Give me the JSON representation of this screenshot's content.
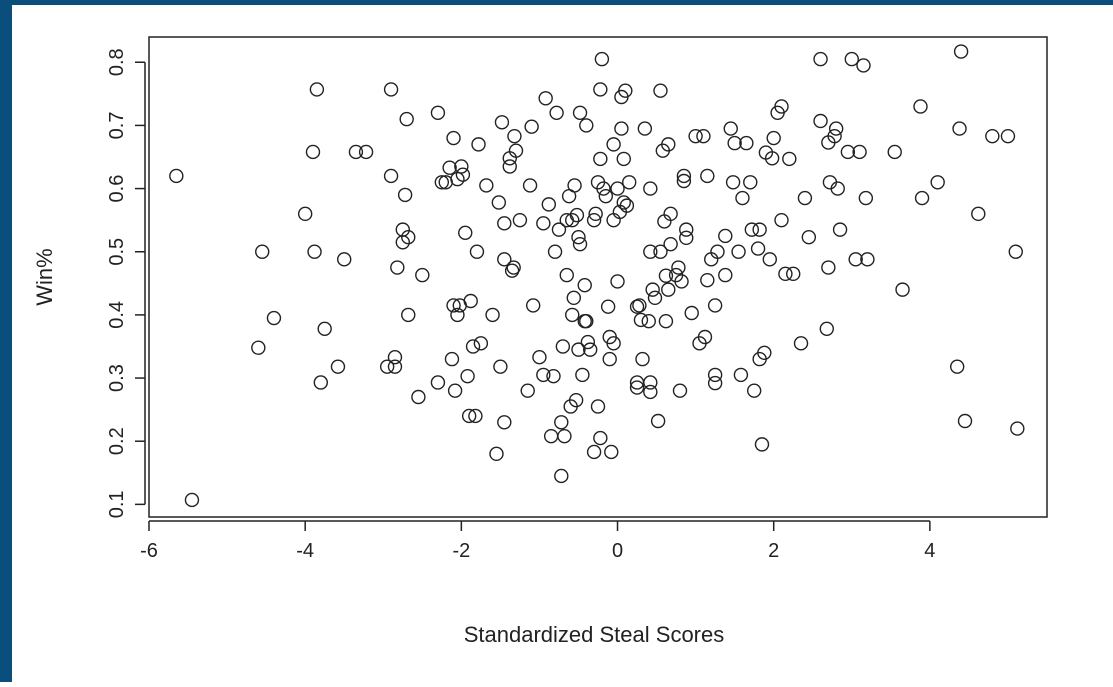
{
  "colors": {
    "frame": "#0a4f7c",
    "background": "#ffffff",
    "ink": "#222222"
  },
  "chart_data": {
    "type": "scatter",
    "title": "",
    "xlabel": "Standardized Steal Scores",
    "ylabel": "Win%",
    "xlim": [
      -6.0,
      5.5
    ],
    "ylim": [
      0.08,
      0.84
    ],
    "xticks": [
      -6,
      -4,
      -2,
      0,
      2,
      4
    ],
    "xtick_labels": [
      "-6",
      "-4",
      "-2",
      "0",
      "2",
      "4"
    ],
    "yticks": [
      0.1,
      0.2,
      0.3,
      0.4,
      0.5,
      0.6,
      0.7,
      0.8
    ],
    "ytick_labels": [
      "0.1",
      "0.2",
      "0.3",
      "0.4",
      "0.5",
      "0.6",
      "0.7",
      "0.8"
    ],
    "grid": false,
    "marker": "open-circle",
    "points": [
      [
        -5.65,
        0.62
      ],
      [
        -5.45,
        0.107
      ],
      [
        -4.6,
        0.348
      ],
      [
        -4.55,
        0.5
      ],
      [
        -4.4,
        0.395
      ],
      [
        -4.0,
        0.56
      ],
      [
        -3.9,
        0.658
      ],
      [
        -3.88,
        0.5
      ],
      [
        -3.85,
        0.757
      ],
      [
        -3.8,
        0.293
      ],
      [
        -3.75,
        0.378
      ],
      [
        -3.58,
        0.318
      ],
      [
        -3.5,
        0.488
      ],
      [
        -3.35,
        0.658
      ],
      [
        -3.22,
        0.658
      ],
      [
        -2.95,
        0.318
      ],
      [
        -2.9,
        0.62
      ],
      [
        -2.9,
        0.757
      ],
      [
        -2.85,
        0.318
      ],
      [
        -2.85,
        0.333
      ],
      [
        -2.82,
        0.475
      ],
      [
        -2.75,
        0.535
      ],
      [
        -2.75,
        0.515
      ],
      [
        -2.72,
        0.59
      ],
      [
        -2.7,
        0.71
      ],
      [
        -2.68,
        0.4
      ],
      [
        -2.68,
        0.523
      ],
      [
        -2.55,
        0.27
      ],
      [
        -2.5,
        0.463
      ],
      [
        -2.3,
        0.293
      ],
      [
        -2.3,
        0.72
      ],
      [
        -2.25,
        0.61
      ],
      [
        -2.2,
        0.61
      ],
      [
        -2.15,
        0.633
      ],
      [
        -2.12,
        0.33
      ],
      [
        -2.1,
        0.68
      ],
      [
        -2.1,
        0.415
      ],
      [
        -2.08,
        0.28
      ],
      [
        -2.05,
        0.4
      ],
      [
        -2.05,
        0.615
      ],
      [
        -2.02,
        0.415
      ],
      [
        -2.0,
        0.635
      ],
      [
        -1.98,
        0.622
      ],
      [
        -1.95,
        0.53
      ],
      [
        -1.92,
        0.303
      ],
      [
        -1.9,
        0.24
      ],
      [
        -1.88,
        0.422
      ],
      [
        -1.85,
        0.35
      ],
      [
        -1.82,
        0.24
      ],
      [
        -1.8,
        0.5
      ],
      [
        -1.78,
        0.67
      ],
      [
        -1.75,
        0.355
      ],
      [
        -1.68,
        0.605
      ],
      [
        -1.6,
        0.4
      ],
      [
        -1.55,
        0.18
      ],
      [
        -1.52,
        0.578
      ],
      [
        -1.5,
        0.318
      ],
      [
        -1.48,
        0.705
      ],
      [
        -1.45,
        0.23
      ],
      [
        -1.45,
        0.545
      ],
      [
        -1.45,
        0.488
      ],
      [
        -1.38,
        0.635
      ],
      [
        -1.38,
        0.648
      ],
      [
        -1.35,
        0.47
      ],
      [
        -1.33,
        0.475
      ],
      [
        -1.32,
        0.683
      ],
      [
        -1.3,
        0.66
      ],
      [
        -1.25,
        0.55
      ],
      [
        -1.15,
        0.28
      ],
      [
        -1.12,
        0.605
      ],
      [
        -1.1,
        0.698
      ],
      [
        -1.08,
        0.415
      ],
      [
        -1.0,
        0.333
      ],
      [
        -0.95,
        0.305
      ],
      [
        -0.95,
        0.545
      ],
      [
        -0.92,
        0.743
      ],
      [
        -0.88,
        0.575
      ],
      [
        -0.85,
        0.208
      ],
      [
        -0.82,
        0.303
      ],
      [
        -0.8,
        0.5
      ],
      [
        -0.78,
        0.72
      ],
      [
        -0.75,
        0.535
      ],
      [
        -0.72,
        0.23
      ],
      [
        -0.72,
        0.145
      ],
      [
        -0.7,
        0.35
      ],
      [
        -0.68,
        0.208
      ],
      [
        -0.65,
        0.463
      ],
      [
        -0.65,
        0.55
      ],
      [
        -0.62,
        0.588
      ],
      [
        -0.6,
        0.255
      ],
      [
        -0.58,
        0.4
      ],
      [
        -0.58,
        0.55
      ],
      [
        -0.56,
        0.427
      ],
      [
        -0.55,
        0.605
      ],
      [
        -0.53,
        0.265
      ],
      [
        -0.52,
        0.558
      ],
      [
        -0.5,
        0.523
      ],
      [
        -0.5,
        0.345
      ],
      [
        -0.48,
        0.512
      ],
      [
        -0.48,
        0.72
      ],
      [
        -0.45,
        0.305
      ],
      [
        -0.42,
        0.447
      ],
      [
        -0.42,
        0.39
      ],
      [
        -0.4,
        0.39
      ],
      [
        -0.4,
        0.7
      ],
      [
        -0.38,
        0.357
      ],
      [
        -0.35,
        0.345
      ],
      [
        -0.3,
        0.183
      ],
      [
        -0.3,
        0.55
      ],
      [
        -0.28,
        0.56
      ],
      [
        -0.25,
        0.255
      ],
      [
        -0.25,
        0.61
      ],
      [
        -0.22,
        0.205
      ],
      [
        -0.22,
        0.647
      ],
      [
        -0.22,
        0.757
      ],
      [
        -0.2,
        0.805
      ],
      [
        -0.18,
        0.6
      ],
      [
        -0.15,
        0.588
      ],
      [
        -0.12,
        0.413
      ],
      [
        -0.1,
        0.365
      ],
      [
        -0.1,
        0.33
      ],
      [
        -0.08,
        0.183
      ],
      [
        -0.05,
        0.355
      ],
      [
        -0.05,
        0.55
      ],
      [
        -0.05,
        0.67
      ],
      [
        0.0,
        0.453
      ],
      [
        0.0,
        0.6
      ],
      [
        0.03,
        0.563
      ],
      [
        0.05,
        0.695
      ],
      [
        0.05,
        0.745
      ],
      [
        0.08,
        0.647
      ],
      [
        0.08,
        0.578
      ],
      [
        0.1,
        0.755
      ],
      [
        0.12,
        0.573
      ],
      [
        0.15,
        0.61
      ],
      [
        0.25,
        0.285
      ],
      [
        0.25,
        0.293
      ],
      [
        0.25,
        0.413
      ],
      [
        0.28,
        0.415
      ],
      [
        0.3,
        0.392
      ],
      [
        0.32,
        0.33
      ],
      [
        0.35,
        0.695
      ],
      [
        0.4,
        0.39
      ],
      [
        0.42,
        0.6
      ],
      [
        0.42,
        0.278
      ],
      [
        0.42,
        0.293
      ],
      [
        0.42,
        0.5
      ],
      [
        0.45,
        0.44
      ],
      [
        0.48,
        0.427
      ],
      [
        0.52,
        0.232
      ],
      [
        0.55,
        0.755
      ],
      [
        0.55,
        0.5
      ],
      [
        0.58,
        0.66
      ],
      [
        0.6,
        0.548
      ],
      [
        0.62,
        0.462
      ],
      [
        0.62,
        0.39
      ],
      [
        0.65,
        0.44
      ],
      [
        0.65,
        0.67
      ],
      [
        0.68,
        0.512
      ],
      [
        0.68,
        0.56
      ],
      [
        0.75,
        0.463
      ],
      [
        0.78,
        0.475
      ],
      [
        0.8,
        0.28
      ],
      [
        0.82,
        0.453
      ],
      [
        0.85,
        0.612
      ],
      [
        0.85,
        0.62
      ],
      [
        0.88,
        0.535
      ],
      [
        0.88,
        0.522
      ],
      [
        0.95,
        0.403
      ],
      [
        1.0,
        0.683
      ],
      [
        1.05,
        0.355
      ],
      [
        1.1,
        0.683
      ],
      [
        1.12,
        0.365
      ],
      [
        1.15,
        0.455
      ],
      [
        1.15,
        0.62
      ],
      [
        1.2,
        0.488
      ],
      [
        1.25,
        0.305
      ],
      [
        1.25,
        0.292
      ],
      [
        1.25,
        0.415
      ],
      [
        1.28,
        0.5
      ],
      [
        1.38,
        0.525
      ],
      [
        1.38,
        0.463
      ],
      [
        1.45,
        0.695
      ],
      [
        1.48,
        0.61
      ],
      [
        1.5,
        0.672
      ],
      [
        1.55,
        0.5
      ],
      [
        1.58,
        0.305
      ],
      [
        1.6,
        0.585
      ],
      [
        1.65,
        0.672
      ],
      [
        1.7,
        0.61
      ],
      [
        1.72,
        0.535
      ],
      [
        1.75,
        0.28
      ],
      [
        1.8,
        0.505
      ],
      [
        1.82,
        0.535
      ],
      [
        1.82,
        0.33
      ],
      [
        1.85,
        0.195
      ],
      [
        1.88,
        0.34
      ],
      [
        1.9,
        0.657
      ],
      [
        1.95,
        0.488
      ],
      [
        1.98,
        0.648
      ],
      [
        2.0,
        0.68
      ],
      [
        2.05,
        0.72
      ],
      [
        2.1,
        0.73
      ],
      [
        2.1,
        0.55
      ],
      [
        2.15,
        0.465
      ],
      [
        2.2,
        0.647
      ],
      [
        2.25,
        0.465
      ],
      [
        2.35,
        0.355
      ],
      [
        2.4,
        0.585
      ],
      [
        2.45,
        0.523
      ],
      [
        2.6,
        0.805
      ],
      [
        2.6,
        0.707
      ],
      [
        2.68,
        0.378
      ],
      [
        2.7,
        0.475
      ],
      [
        2.7,
        0.673
      ],
      [
        2.72,
        0.61
      ],
      [
        2.78,
        0.683
      ],
      [
        2.8,
        0.695
      ],
      [
        2.82,
        0.6
      ],
      [
        2.85,
        0.535
      ],
      [
        2.95,
        0.658
      ],
      [
        3.0,
        0.805
      ],
      [
        3.05,
        0.488
      ],
      [
        3.1,
        0.658
      ],
      [
        3.15,
        0.795
      ],
      [
        3.18,
        0.585
      ],
      [
        3.2,
        0.488
      ],
      [
        3.55,
        0.658
      ],
      [
        3.65,
        0.44
      ],
      [
        3.88,
        0.73
      ],
      [
        3.9,
        0.585
      ],
      [
        4.1,
        0.61
      ],
      [
        4.35,
        0.318
      ],
      [
        4.38,
        0.695
      ],
      [
        4.4,
        0.817
      ],
      [
        4.45,
        0.232
      ],
      [
        4.62,
        0.56
      ],
      [
        4.8,
        0.683
      ],
      [
        5.0,
        0.683
      ],
      [
        5.1,
        0.5
      ],
      [
        5.12,
        0.22
      ]
    ]
  }
}
